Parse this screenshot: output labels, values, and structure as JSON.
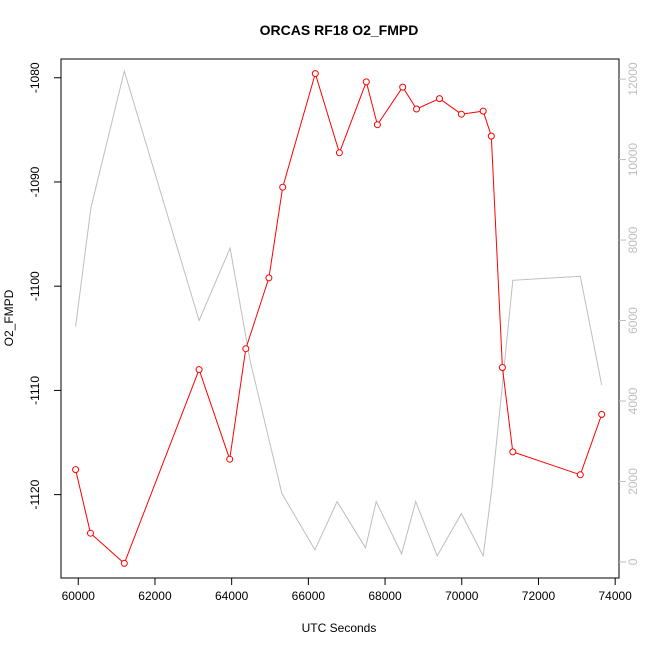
{
  "chart_data": {
    "type": "line",
    "title": "ORCAS RF18 O2_FMPD",
    "xlabel": "UTC Seconds",
    "ylabel": "O2_FMPD",
    "xlim": [
      59550,
      74100
    ],
    "ylim": [
      -1128,
      -1078.2
    ],
    "y2lim": [
      -400,
      12500
    ],
    "x_ticks": [
      60000,
      62000,
      64000,
      66000,
      68000,
      70000,
      72000,
      74000
    ],
    "y_ticks": [
      -1080,
      -1090,
      -1100,
      -1110,
      -1120
    ],
    "y2_ticks": [
      0,
      2000,
      4000,
      6000,
      8000,
      10000,
      12000
    ],
    "colors": {
      "primary": "#ff0000",
      "secondary": "#bebebe",
      "axis": "#000000"
    },
    "series": [
      {
        "axis": "left",
        "style": "line+points",
        "x": [
          59930,
          60320,
          61200,
          63150,
          63950,
          64370,
          64970,
          65330,
          66180,
          66810,
          67510,
          67800,
          68460,
          68820,
          69420,
          69990,
          70560,
          70770,
          71060,
          71330,
          73090,
          73650
        ],
        "y": [
          -1117.6,
          -1123.7,
          -1126.6,
          -1108.0,
          -1116.6,
          -1106.0,
          -1099.2,
          -1090.5,
          -1079.6,
          -1087.2,
          -1080.4,
          -1084.5,
          -1080.9,
          -1083.0,
          -1082.0,
          -1083.5,
          -1083.2,
          -1085.6,
          -1107.8,
          -1115.9,
          -1118.1,
          -1112.3
        ]
      },
      {
        "axis": "right",
        "style": "line",
        "x": [
          59930,
          60330,
          61200,
          63150,
          63960,
          64480,
          65310,
          66170,
          66750,
          67490,
          67770,
          68430,
          68800,
          69360,
          69990,
          70560,
          70780,
          71050,
          71330,
          73090,
          73650
        ],
        "y": [
          5850,
          8800,
          12200,
          6000,
          7800,
          5000,
          1700,
          300,
          1500,
          350,
          1500,
          200,
          1500,
          150,
          1200,
          150,
          1800,
          4300,
          7000,
          7100,
          4400
        ]
      }
    ]
  }
}
